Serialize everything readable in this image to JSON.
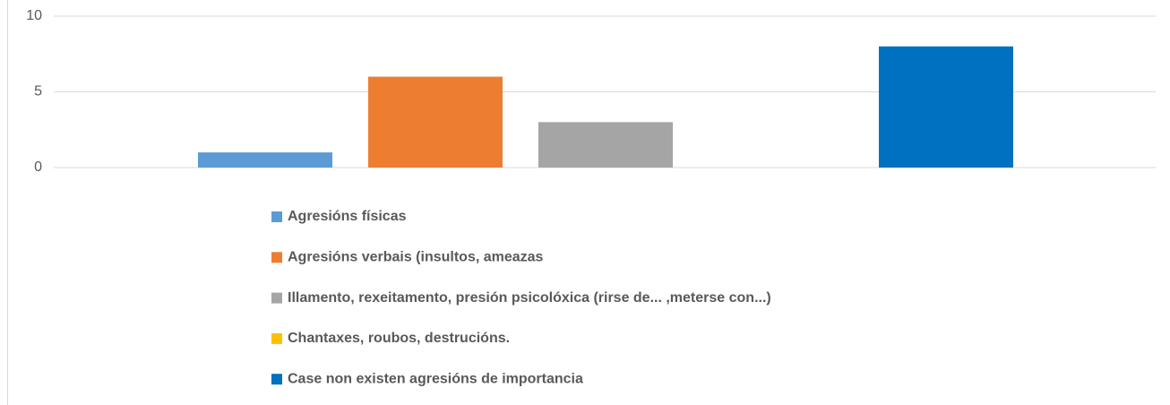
{
  "chart_data": {
    "type": "bar",
    "categories": [
      null
    ],
    "series": [
      {
        "name": "Agresións físicas",
        "color": "#5b9bd5",
        "values": [
          1
        ]
      },
      {
        "name": "Agresións verbais (insultos, ameazas",
        "color": "#ed7d31",
        "values": [
          6
        ]
      },
      {
        "name": "Illamento, rexeitamento, presión psicolóxica (rirse de... ,meterse con...)",
        "color": "#a5a5a5",
        "values": [
          3
        ]
      },
      {
        "name": "Chantaxes, roubos, destrucións.",
        "color": "#ffc000",
        "values": [
          0
        ]
      },
      {
        "name": "Case non existen agresións de importancia",
        "color": "#0070c0",
        "values": [
          8
        ]
      }
    ],
    "ylim": [
      0,
      10
    ],
    "yticks": [
      0,
      5,
      10
    ],
    "grid": true,
    "legend": "bottom"
  }
}
